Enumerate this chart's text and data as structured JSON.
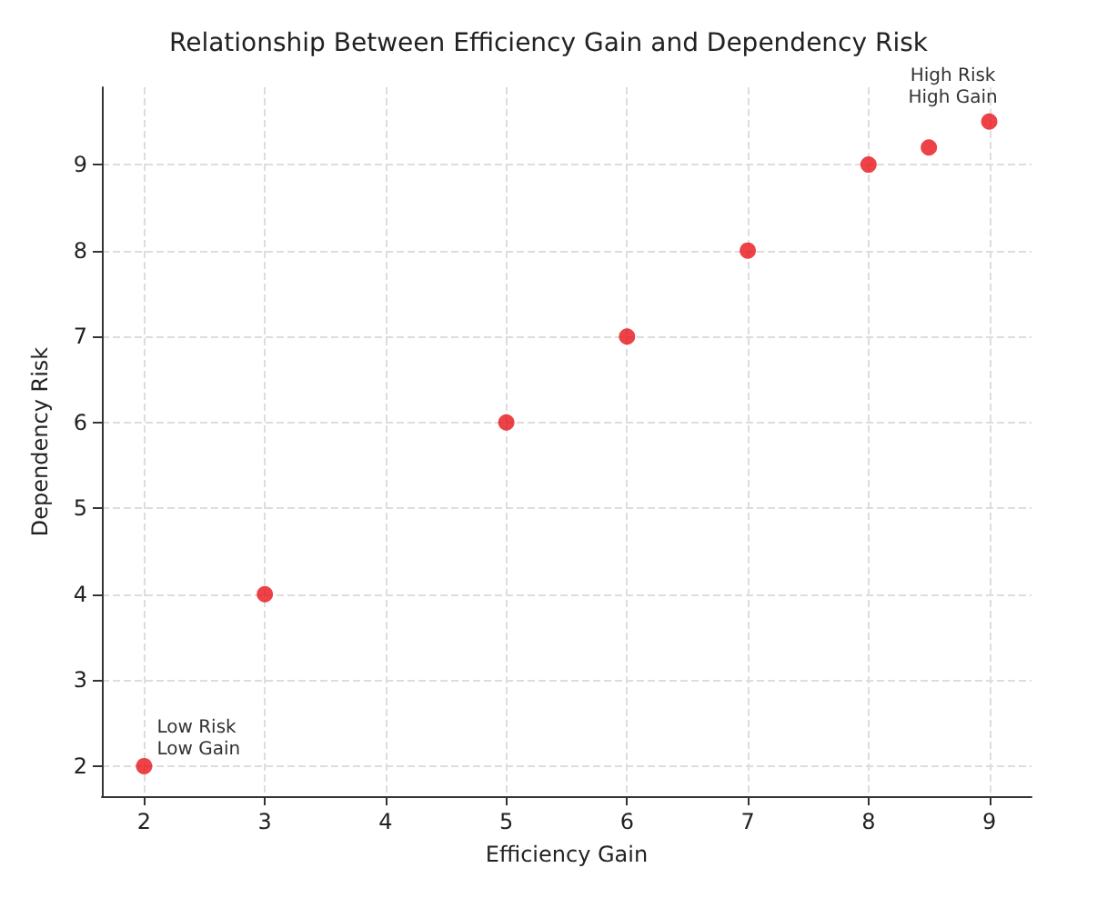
{
  "chart_data": {
    "type": "scatter",
    "title": "Relationship Between Efficiency Gain and Dependency Risk",
    "xlabel": "Efficiency Gain",
    "ylabel": "Dependency Risk",
    "x": [
      2,
      3,
      5,
      6,
      7,
      8,
      8.5,
      9
    ],
    "series": [
      {
        "color": "#e8141a",
        "values": [
          2,
          4,
          6,
          7,
          8,
          9,
          9.2,
          9.5
        ]
      }
    ],
    "xlim": [
      1.65,
      9.35
    ],
    "ylim": [
      1.65,
      9.9
    ],
    "xticks": [
      2,
      3,
      4,
      5,
      6,
      7,
      8,
      9
    ],
    "yticks": [
      2,
      3,
      4,
      5,
      6,
      7,
      8,
      9
    ],
    "grid": true,
    "marker": "circle",
    "annotations": [
      {
        "text": "Low Risk\nLow Gain",
        "x": 2,
        "y": 2
      },
      {
        "text": "High Risk\nHigh Gain",
        "x": 9,
        "y": 9.5
      }
    ]
  }
}
